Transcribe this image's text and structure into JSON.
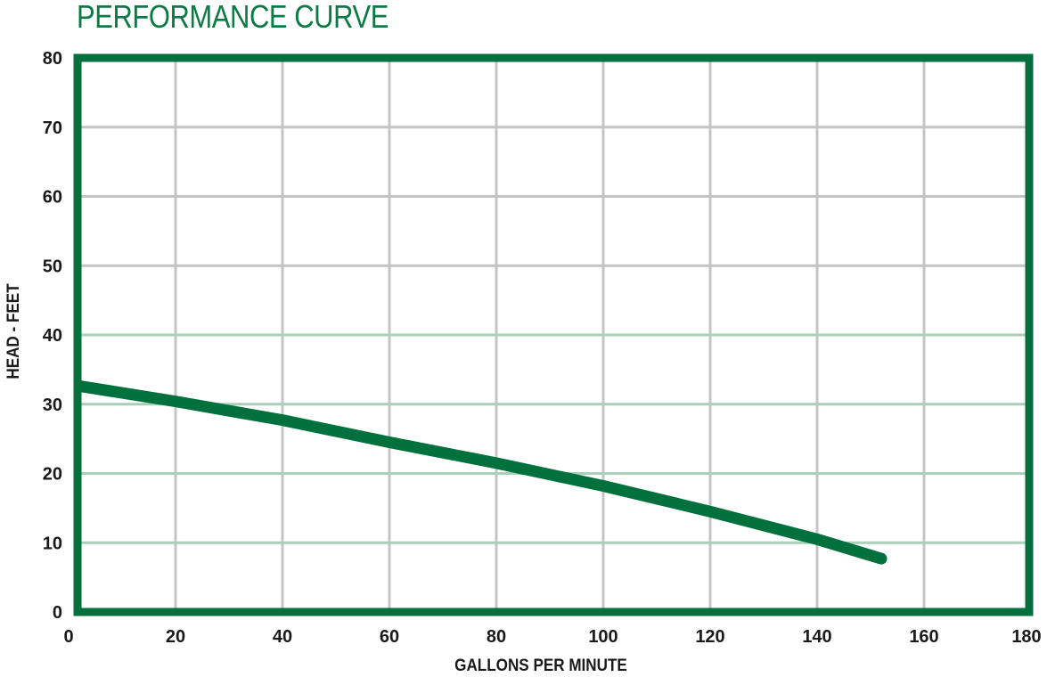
{
  "page": {
    "title": "PERFORMANCE CURVE"
  },
  "colors": {
    "frame": "#00703C",
    "curve": "#00703C",
    "grid_grey": "#c4c4c4",
    "grid_green": "#a9cfbb",
    "title": "#0b7a44"
  },
  "chart_data": {
    "type": "line",
    "title": "PERFORMANCE CURVE",
    "xlabel": "GALLONS PER MINUTE",
    "ylabel": "HEAD - FEET",
    "xlim": [
      0,
      180
    ],
    "ylim": [
      0,
      80
    ],
    "xticks": [
      0,
      20,
      40,
      60,
      80,
      100,
      120,
      140,
      160,
      180
    ],
    "yticks": [
      0,
      10,
      20,
      30,
      40,
      50,
      60,
      70,
      80
    ],
    "grid": true,
    "legend": null,
    "series": [
      {
        "name": "Performance curve",
        "x": [
          0,
          20,
          40,
          60,
          80,
          100,
          120,
          140,
          152
        ],
        "y": [
          32.6,
          30.4,
          27.7,
          24.5,
          21.5,
          18.2,
          14.5,
          10.5,
          7.7
        ]
      }
    ]
  }
}
